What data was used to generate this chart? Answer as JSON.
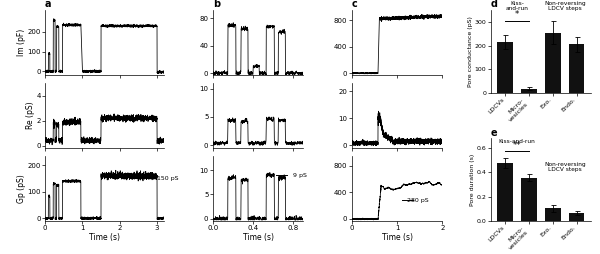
{
  "panel_d": {
    "categories": [
      "LDCVs",
      "Micro-\nvesicles",
      "Exo.",
      "Endo."
    ],
    "values": [
      215,
      18,
      255,
      205
    ],
    "errors": [
      28,
      5,
      48,
      32
    ],
    "ylabel": "Pore conductance (pS)",
    "ylim": [
      0,
      350
    ],
    "yticks": [
      0,
      100,
      200,
      300
    ],
    "title_kiss": "Kiss-\nand-run",
    "title_nonrev": "Non-reversing\nLDCV steps",
    "sig_label": "*",
    "bar_color": "#111111"
  },
  "panel_e": {
    "categories": [
      "LDCVs",
      "Micro-\nvesicles",
      "Exo.",
      "Endo."
    ],
    "values": [
      0.48,
      0.355,
      0.105,
      0.065
    ],
    "errors": [
      0.042,
      0.03,
      0.028,
      0.016
    ],
    "ylabel": "Pore duration (s)",
    "ylim": [
      0,
      0.68
    ],
    "yticks": [
      0,
      0.2,
      0.4,
      0.6
    ],
    "title_kiss": "Kiss-and-run",
    "title_nonrev": "Non-reversing\nLDCV steps",
    "sig_label": "**",
    "bar_color": "#111111"
  },
  "trace_lw": 0.55,
  "tick_fs": 5.0,
  "label_fs": 5.5
}
